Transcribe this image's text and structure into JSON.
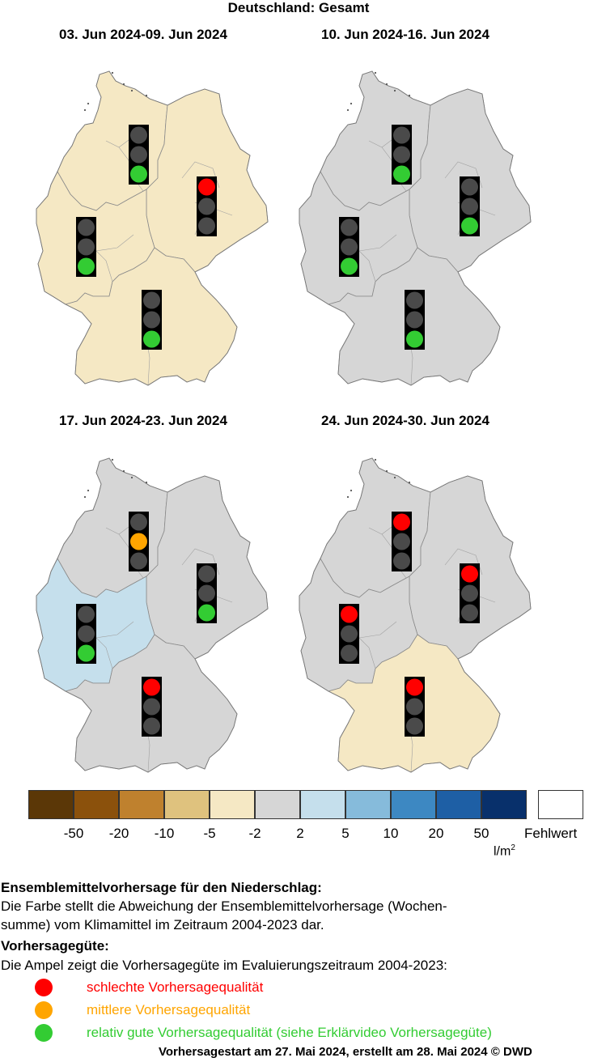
{
  "title": "Deutschland: Gesamt",
  "panels": [
    {
      "label": "03. Jun 2024-09. Jun 2024",
      "regions": {
        "north": "-5..-2",
        "east": "-5..-2",
        "west": "-5..-2",
        "south": "-5..-2"
      },
      "lights": {
        "north": "green",
        "east": "red",
        "west": "green",
        "south": "green"
      }
    },
    {
      "label": "10. Jun 2024-16. Jun 2024",
      "regions": {
        "north": "-2..2",
        "east": "-2..2",
        "west": "-2..2",
        "south": "-2..2"
      },
      "lights": {
        "north": "green",
        "east": "green",
        "west": "green",
        "south": "green"
      }
    },
    {
      "label": "17. Jun 2024-23. Jun 2024",
      "regions": {
        "north": "-2..2",
        "east": "-2..2",
        "west": "2..5",
        "south": "-2..2"
      },
      "lights": {
        "north": "orange",
        "east": "green",
        "west": "green",
        "south": "red"
      }
    },
    {
      "label": "24. Jun 2024-30. Jun 2024",
      "regions": {
        "north": "-2..2",
        "east": "-2..2",
        "west": "-2..2",
        "south": "-5..-2"
      },
      "lights": {
        "north": "red",
        "east": "red",
        "west": "red",
        "south": "red"
      }
    }
  ],
  "colorbar": {
    "colors": [
      "#5b3707",
      "#8b510c",
      "#bf812e",
      "#dfc27e",
      "#f5e8c4",
      "#d6d6d6",
      "#c5dfec",
      "#86bbdb",
      "#3d88c2",
      "#1e5fa5",
      "#08306b"
    ],
    "ticks": [
      "-50",
      "-20",
      "-10",
      "-5",
      "-2",
      "2",
      "5",
      "10",
      "20",
      "50"
    ],
    "unit_base": "l/m",
    "unit_exp": "2",
    "missing_label": "Fehlwert"
  },
  "region_colors": {
    "-5..-2": "#f5e8c4",
    "-2..2": "#d6d6d6",
    "2..5": "#c5dfec"
  },
  "light_colors": {
    "red": "#ff0000",
    "orange": "#ffa500",
    "green": "#33cc33",
    "off": "#4a4a4a"
  },
  "legend": {
    "heading1": "Ensemblemittelvorhersage für den Niederschlag:",
    "text1_line1": "Die Farbe stellt die Abweichung der Ensemblemittelvorhersage (Wochen-",
    "text1_line2": "summe) vom Klimamittel im Zeitraum 2004-2023 dar.",
    "heading2": "Vorhersagegüte:",
    "text2": "Die Ampel zeigt die Vorhersagegüte im Evaluierungszeitraum 2004-2023:",
    "quality": [
      {
        "label": "schlechte Vorhersagequalität",
        "color": "#ff0000"
      },
      {
        "label": "mittlere Vorhersagequalität",
        "color": "#ffa500"
      },
      {
        "label": "relativ gute Vorhersagequalität (siehe Erklärvideo Vorhersagegüte)",
        "color": "#33cc33"
      }
    ]
  },
  "footer": "Vorhersagestart am 27. Mai 2024, erstellt am 28. Mai 2024 © DWD"
}
